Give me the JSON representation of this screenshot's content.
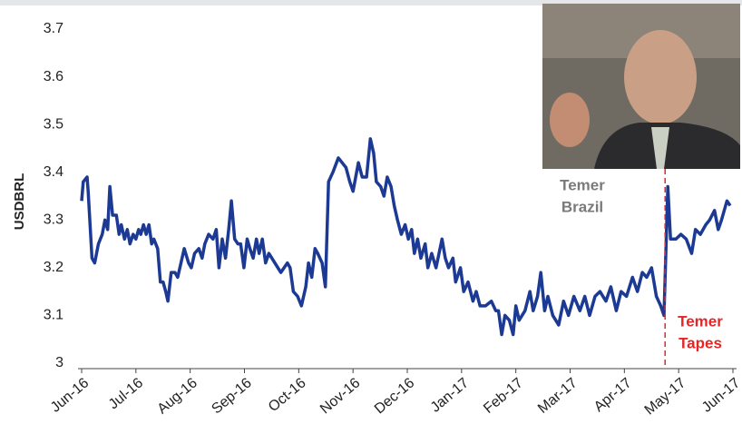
{
  "chart_data": {
    "type": "line",
    "y_label": "USDBRL",
    "xlim": [
      0,
      12
    ],
    "xticks": [
      {
        "value": 0,
        "label": "Jun-16"
      },
      {
        "value": 1,
        "label": "Jul-16"
      },
      {
        "value": 2,
        "label": "Aug-16"
      },
      {
        "value": 3,
        "label": "Sep-16"
      },
      {
        "value": 4,
        "label": "Oct-16"
      },
      {
        "value": 5,
        "label": "Nov-16"
      },
      {
        "value": 6,
        "label": "Dec-16"
      },
      {
        "value": 7,
        "label": "Jan-17"
      },
      {
        "value": 8,
        "label": "Feb-17"
      },
      {
        "value": 9,
        "label": "Mar-17"
      },
      {
        "value": 10,
        "label": "Apr-17"
      },
      {
        "value": 11,
        "label": "May-17"
      },
      {
        "value": 12,
        "label": "Jun-17"
      }
    ],
    "ylim": [
      3,
      3.7
    ],
    "yticks": [
      3,
      3.1,
      3.2,
      3.3,
      3.4,
      3.5,
      3.6,
      3.7
    ],
    "x": [
      0,
      0.03,
      0.1,
      0.12,
      0.16,
      0.19,
      0.24,
      0.31,
      0.38,
      0.43,
      0.48,
      0.52,
      0.57,
      0.64,
      0.69,
      0.73,
      0.79,
      0.84,
      0.89,
      0.95,
      1.0,
      1.05,
      1.09,
      1.14,
      1.19,
      1.24,
      1.29,
      1.33,
      1.4,
      1.45,
      1.5,
      1.55,
      1.59,
      1.65,
      1.72,
      1.77,
      1.83,
      1.89,
      1.97,
      2.02,
      2.08,
      2.16,
      2.22,
      2.27,
      2.34,
      2.42,
      2.48,
      2.53,
      2.59,
      2.65,
      2.71,
      2.76,
      2.82,
      2.88,
      2.93,
      2.99,
      3.05,
      3.1,
      3.16,
      3.22,
      3.27,
      3.33,
      3.39,
      3.45,
      3.56,
      3.67,
      3.79,
      3.84,
      3.9,
      3.98,
      4.05,
      4.13,
      4.18,
      4.24,
      4.3,
      4.35,
      4.43,
      4.49,
      4.55,
      4.63,
      4.73,
      4.8,
      4.87,
      4.94,
      5.0,
      5.1,
      5.17,
      5.25,
      5.32,
      5.38,
      5.43,
      5.51,
      5.57,
      5.63,
      5.7,
      5.76,
      5.82,
      5.89,
      5.96,
      6.02,
      6.08,
      6.13,
      6.19,
      6.25,
      6.33,
      6.38,
      6.45,
      6.53,
      6.64,
      6.7,
      6.76,
      6.84,
      6.89,
      6.98,
      7.04,
      7.12,
      7.21,
      7.27,
      7.34,
      7.44,
      7.55,
      7.63,
      7.68,
      7.74,
      7.8,
      7.88,
      7.95,
      8.0,
      8.06,
      8.17,
      8.26,
      8.32,
      8.4,
      8.46,
      8.53,
      8.59,
      8.68,
      8.79,
      8.88,
      8.97,
      9.07,
      9.18,
      9.27,
      9.36,
      9.46,
      9.55,
      9.66,
      9.75,
      9.85,
      9.94,
      10.04,
      10.15,
      10.24,
      10.33,
      10.41,
      10.5,
      10.59,
      10.67,
      10.73,
      10.8,
      10.85,
      10.95,
      11.04,
      11.14,
      11.24,
      11.31,
      11.4,
      11.5,
      11.57,
      11.66,
      11.73,
      11.79,
      11.89,
      11.95
    ],
    "series": [
      {
        "name": "USDBRL",
        "color": "#1c3a94",
        "values": [
          3.34,
          3.38,
          3.39,
          3.36,
          3.28,
          3.22,
          3.21,
          3.25,
          3.27,
          3.3,
          3.28,
          3.37,
          3.31,
          3.31,
          3.27,
          3.29,
          3.26,
          3.28,
          3.25,
          3.27,
          3.26,
          3.28,
          3.27,
          3.29,
          3.27,
          3.29,
          3.25,
          3.26,
          3.24,
          3.17,
          3.17,
          3.15,
          3.13,
          3.19,
          3.19,
          3.18,
          3.21,
          3.24,
          3.21,
          3.2,
          3.23,
          3.24,
          3.22,
          3.25,
          3.27,
          3.26,
          3.28,
          3.2,
          3.26,
          3.22,
          3.28,
          3.34,
          3.26,
          3.25,
          3.25,
          3.2,
          3.26,
          3.24,
          3.22,
          3.26,
          3.23,
          3.26,
          3.21,
          3.23,
          3.21,
          3.19,
          3.21,
          3.2,
          3.15,
          3.14,
          3.12,
          3.16,
          3.21,
          3.18,
          3.24,
          3.23,
          3.21,
          3.16,
          3.38,
          3.4,
          3.43,
          3.42,
          3.41,
          3.38,
          3.36,
          3.42,
          3.39,
          3.39,
          3.47,
          3.44,
          3.38,
          3.37,
          3.35,
          3.39,
          3.37,
          3.33,
          3.3,
          3.27,
          3.29,
          3.26,
          3.28,
          3.23,
          3.26,
          3.22,
          3.25,
          3.2,
          3.23,
          3.2,
          3.26,
          3.22,
          3.2,
          3.22,
          3.17,
          3.2,
          3.15,
          3.17,
          3.13,
          3.15,
          3.12,
          3.12,
          3.13,
          3.11,
          3.11,
          3.06,
          3.1,
          3.09,
          3.06,
          3.12,
          3.09,
          3.11,
          3.15,
          3.11,
          3.14,
          3.19,
          3.11,
          3.14,
          3.1,
          3.08,
          3.13,
          3.1,
          3.14,
          3.11,
          3.14,
          3.1,
          3.14,
          3.15,
          3.13,
          3.16,
          3.11,
          3.15,
          3.14,
          3.18,
          3.15,
          3.19,
          3.18,
          3.2,
          3.14,
          3.12,
          3.1,
          3.37,
          3.26,
          3.26,
          3.27,
          3.26,
          3.23,
          3.28,
          3.27,
          3.29,
          3.3,
          3.32,
          3.28,
          3.3,
          3.34,
          3.33
        ]
      }
    ],
    "event_line": {
      "x": 10.75,
      "color": "#e32626"
    },
    "annotations": [
      {
        "lines": [
          "Temer",
          "Brazil"
        ],
        "color": "#7a7a7a"
      },
      {
        "lines": [
          "Temer",
          "Tapes"
        ],
        "color": "#e32626"
      }
    ]
  }
}
